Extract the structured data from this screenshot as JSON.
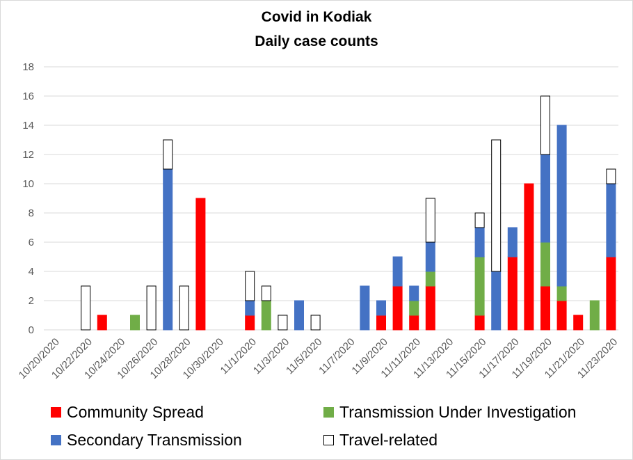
{
  "chart_data": {
    "type": "bar",
    "stacked": true,
    "title": [
      "Covid in Kodiak",
      "Daily case counts"
    ],
    "xlabel": "",
    "ylabel": "",
    "ylim": [
      0,
      18
    ],
    "yticks": [
      0,
      2,
      4,
      6,
      8,
      10,
      12,
      14,
      16,
      18
    ],
    "grid": true,
    "legend_position": "bottom",
    "categories": [
      "10/20/2020",
      "10/21/2020",
      "10/22/2020",
      "10/23/2020",
      "10/24/2020",
      "10/25/2020",
      "10/26/2020",
      "10/27/2020",
      "10/28/2020",
      "10/29/2020",
      "10/30/2020",
      "10/31/2020",
      "11/1/2020",
      "11/2/2020",
      "11/3/2020",
      "11/4/2020",
      "11/5/2020",
      "11/6/2020",
      "11/7/2020",
      "11/8/2020",
      "11/9/2020",
      "11/10/2020",
      "11/11/2020",
      "11/12/2020",
      "11/13/2020",
      "11/14/2020",
      "11/15/2020",
      "11/16/2020",
      "11/17/2020",
      "11/18/2020",
      "11/19/2020",
      "11/20/2020",
      "11/21/2020",
      "11/22/2020",
      "11/23/2020"
    ],
    "tick_labels": [
      "10/20/2020",
      "10/22/2020",
      "10/24/2020",
      "10/26/2020",
      "10/28/2020",
      "10/30/2020",
      "11/1/2020",
      "11/3/2020",
      "11/5/2020",
      "11/7/2020",
      "11/9/2020",
      "11/11/2020",
      "11/13/2020",
      "11/15/2020",
      "11/17/2020",
      "11/19/2020",
      "11/21/2020",
      "11/23/2020"
    ],
    "series": [
      {
        "name": "Community Spread",
        "color": "#ff0000",
        "stroke": "#ff0000",
        "values": [
          0,
          0,
          0,
          1,
          0,
          0,
          0,
          0,
          0,
          9,
          0,
          0,
          1,
          0,
          0,
          0,
          0,
          0,
          0,
          0,
          1,
          3,
          1,
          3,
          0,
          0,
          1,
          0,
          5,
          10,
          3,
          2,
          1,
          0,
          5
        ]
      },
      {
        "name": "Transmission Under Investigation",
        "color": "#70ad47",
        "stroke": "#70ad47",
        "values": [
          0,
          0,
          0,
          0,
          0,
          1,
          0,
          0,
          0,
          0,
          0,
          0,
          0,
          2,
          0,
          0,
          0,
          0,
          0,
          0,
          0,
          0,
          1,
          1,
          0,
          0,
          4,
          0,
          0,
          0,
          3,
          1,
          0,
          2,
          0
        ]
      },
      {
        "name": "Secondary Transmission",
        "color": "#4472c4",
        "stroke": "#4472c4",
        "values": [
          0,
          0,
          0,
          0,
          0,
          0,
          0,
          11,
          0,
          0,
          0,
          0,
          1,
          0,
          0,
          2,
          0,
          0,
          0,
          3,
          1,
          2,
          1,
          2,
          0,
          0,
          2,
          4,
          2,
          0,
          6,
          11,
          0,
          0,
          5
        ]
      },
      {
        "name": "Travel-related",
        "color": "#ffffff",
        "stroke": "#000000",
        "values": [
          0,
          0,
          3,
          0,
          0,
          0,
          3,
          2,
          3,
          0,
          0,
          0,
          2,
          1,
          1,
          0,
          1,
          0,
          0,
          0,
          0,
          0,
          0,
          3,
          0,
          0,
          1,
          9,
          0,
          0,
          4,
          0,
          0,
          0,
          1
        ]
      }
    ]
  }
}
